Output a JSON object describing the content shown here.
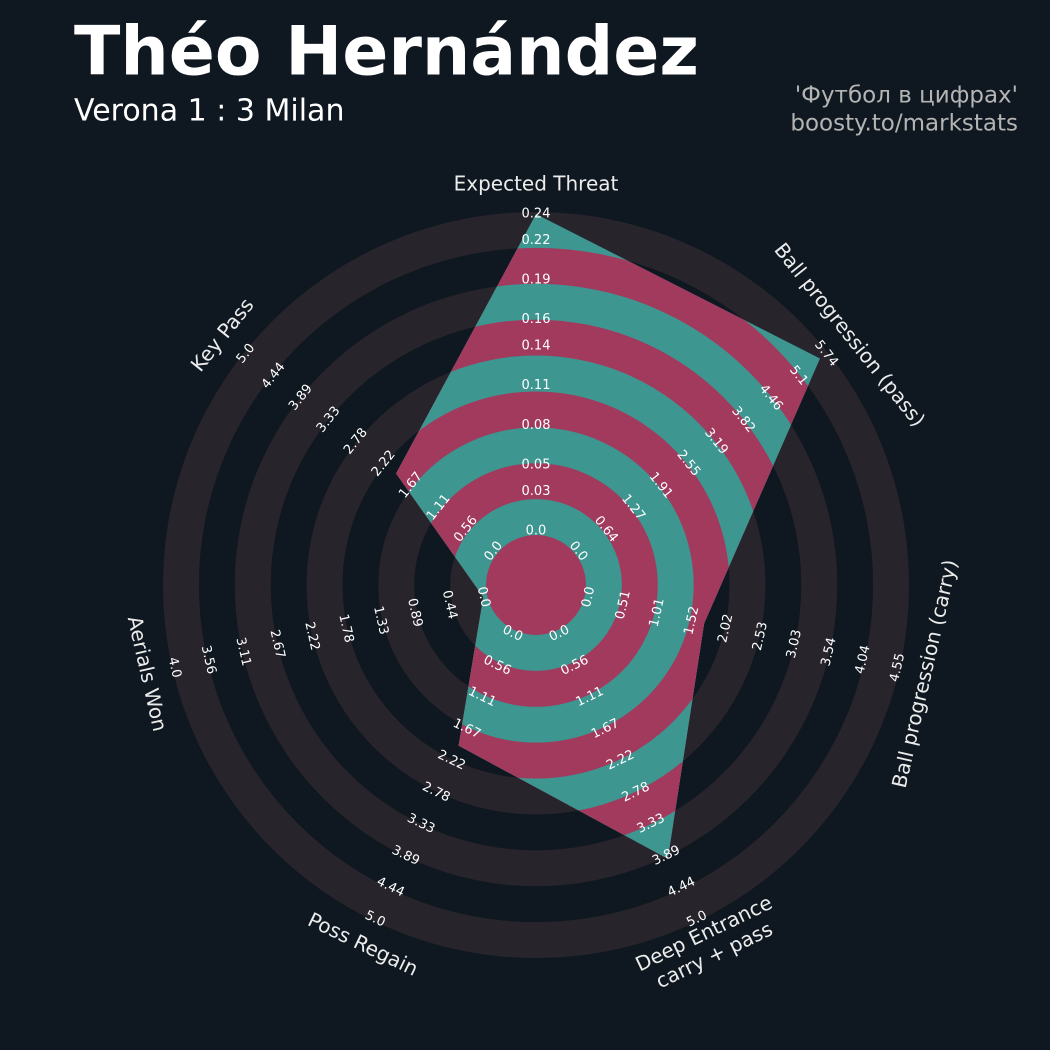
{
  "chart_data": {
    "type": "radar",
    "title": "Théo Hernández",
    "subtitle": "Verona 1 : 3 Milan",
    "credits": [
      "'Футбол в цифрах'",
      "boosty.to/markstats"
    ],
    "categories": [
      "Expected Threat",
      "Ball progression (pass)",
      "Ball progression (carry)",
      [
        "Deep Entrance",
        "carry + pass"
      ],
      "Poss Regain",
      "Aerials Won",
      "Key Pass"
    ],
    "values": [
      0.24,
      5.6,
      1.7,
      3.94,
      1.96,
      0,
      1.97
    ],
    "axes": [
      {
        "lim": [
          0,
          0.24
        ],
        "ticks": [
          {
            "value": 0,
            "label": "0.0"
          },
          0.03,
          0.05,
          0.08,
          0.11,
          0.14,
          0.16,
          0.19,
          0.22,
          0.24
        ]
      },
      {
        "lim": [
          0,
          5.74
        ],
        "ticks": [
          {
            "value": 0,
            "label": "0.0"
          },
          0.64,
          1.27,
          1.91,
          2.55,
          3.19,
          3.82,
          4.46,
          {
            "value": 5.1,
            "label": "5.1"
          },
          5.74
        ]
      },
      {
        "lim": [
          0,
          4.55
        ],
        "ticks": [
          {
            "value": 0,
            "label": "0.0"
          },
          0.51,
          1.01,
          1.52,
          2.02,
          2.53,
          3.03,
          3.54,
          4.04,
          4.55
        ]
      },
      {
        "lim": [
          0,
          5
        ],
        "ticks": [
          {
            "value": 0,
            "label": "0.0"
          },
          0.56,
          1.11,
          1.67,
          2.22,
          2.78,
          3.33,
          3.89,
          4.44,
          {
            "value": 5,
            "label": "5.0"
          }
        ]
      },
      {
        "lim": [
          0,
          5
        ],
        "ticks": [
          {
            "value": 0,
            "label": "0.0"
          },
          0.56,
          1.11,
          1.67,
          2.22,
          2.78,
          3.33,
          3.89,
          4.44,
          {
            "value": 5,
            "label": "5.0"
          }
        ]
      },
      {
        "lim": [
          0,
          4
        ],
        "ticks": [
          {
            "value": 0,
            "label": "0.0"
          },
          0.44,
          0.89,
          1.33,
          1.78,
          2.22,
          2.67,
          3.11,
          3.56,
          {
            "value": 4,
            "label": "4.0"
          }
        ]
      },
      {
        "lim": [
          0,
          5
        ],
        "ticks": [
          {
            "value": 0,
            "label": "0.0"
          },
          0.56,
          1.11,
          1.67,
          2.22,
          2.78,
          3.33,
          3.89,
          4.44,
          {
            "value": 5,
            "label": "5.0"
          }
        ]
      }
    ],
    "colors": {
      "fill": "#3d9690",
      "fill_alt": "#a23a5e",
      "ring": "#28242b",
      "background": "#0f1820"
    }
  }
}
